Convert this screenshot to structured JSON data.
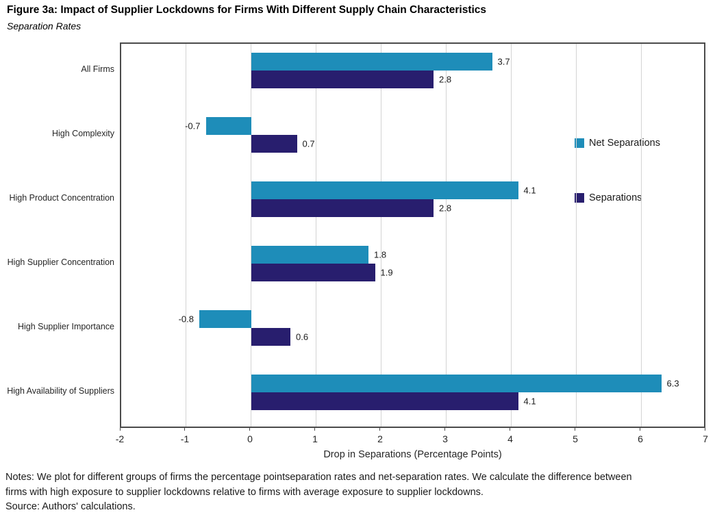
{
  "chart_data": {
    "type": "bar",
    "orientation": "horizontal",
    "title": "Figure 3a: Impact of Supplier Lockdowns for Firms With Different Supply Chain Characteristics",
    "subtitle": "Separation Rates",
    "categories": [
      "All Firms",
      "High Complexity",
      "High Product Concentration",
      "High Supplier Concentration",
      "High Supplier Importance",
      "High Availability of Suppliers"
    ],
    "series": [
      {
        "name": "Net Separations",
        "color": "#1E8DB9",
        "values": [
          3.7,
          -0.7,
          4.1,
          1.8,
          -0.8,
          6.3
        ]
      },
      {
        "name": "Separations",
        "color": "#281E6E",
        "values": [
          2.8,
          0.7,
          2.8,
          1.9,
          0.6,
          4.1
        ]
      }
    ],
    "xlabel": "Drop in Separations (Percentage Points)",
    "xlim": [
      -2,
      7
    ],
    "x_ticks": [
      -2,
      -1,
      0,
      1,
      2,
      3,
      4,
      5,
      6,
      7
    ],
    "grid": true,
    "legend_position": "inside-right",
    "gridline_color": "#d3d3d3",
    "border_color": "#4a4a4a"
  },
  "notes": {
    "line1": "Notes: We plot for different groups of firms the percentage pointseparation rates and net-separation rates. We calculate the difference between",
    "line2": "firms with high exposure to supplier lockdowns relative to firms with average exposure to supplier lockdowns.",
    "source": "Source: Authors' calculations."
  }
}
